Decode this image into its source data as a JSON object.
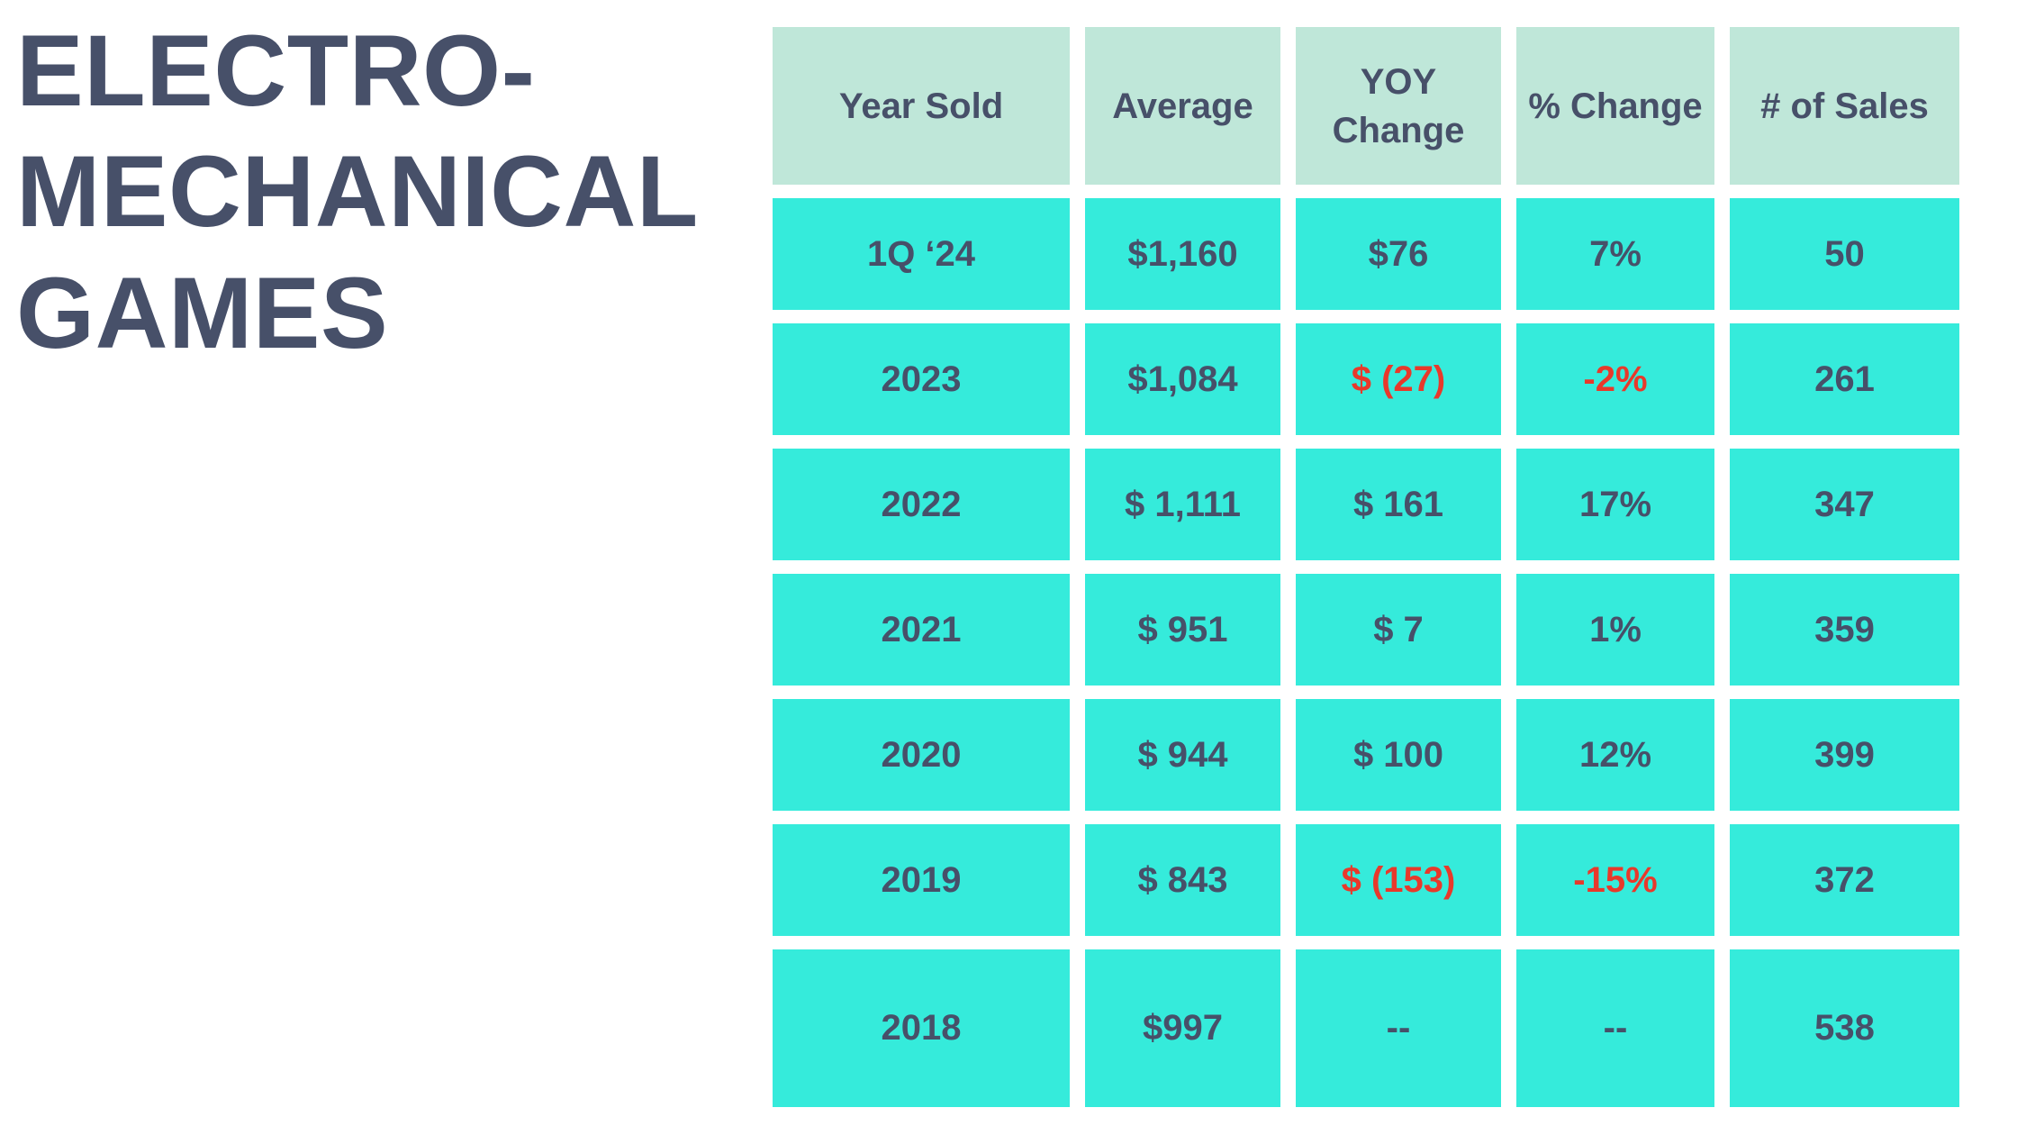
{
  "page": {
    "background_color": "#ffffff"
  },
  "title": {
    "text": "ELECTRO-MECHANICAL GAMES",
    "lines": [
      "ELECTRO-",
      "MECHANICAL",
      "GAMES"
    ],
    "color": "#475069"
  },
  "table": {
    "header_background": "#bfe7d9",
    "cell_background": "#35ebdb",
    "text_color": "#475069",
    "negative_color": "#e8392b",
    "columns": [
      "Year Sold",
      "Average",
      "YOY Change",
      "% Change",
      "# of Sales"
    ],
    "column_keys": [
      "year-sold",
      "average",
      "yoy-change",
      "pct-change",
      "num-sales"
    ],
    "rows": [
      {
        "cells": [
          {
            "t": "1Q ‘24"
          },
          {
            "t": "$1,160"
          },
          {
            "t": "$76"
          },
          {
            "t": "7%"
          },
          {
            "t": "50"
          }
        ]
      },
      {
        "cells": [
          {
            "t": "2023"
          },
          {
            "t": "$1,084"
          },
          {
            "t": "$ (27)",
            "red": true
          },
          {
            "t": "-2%",
            "red": true
          },
          {
            "t": "261"
          }
        ]
      },
      {
        "cells": [
          {
            "t": "2022"
          },
          {
            "t": "$ 1,111"
          },
          {
            "t": "$ 161"
          },
          {
            "t": "17%"
          },
          {
            "t": "347"
          }
        ]
      },
      {
        "cells": [
          {
            "t": "2021"
          },
          {
            "t": "$ 951"
          },
          {
            "t": "$ 7"
          },
          {
            "t": "1%"
          },
          {
            "t": "359"
          }
        ]
      },
      {
        "cells": [
          {
            "t": "2020"
          },
          {
            "t": "$ 944"
          },
          {
            "t": "$ 100"
          },
          {
            "t": "12%"
          },
          {
            "t": "399"
          }
        ]
      },
      {
        "cells": [
          {
            "t": "2019"
          },
          {
            "t": "$ 843"
          },
          {
            "t": "$ (153)",
            "red": true
          },
          {
            "t": "-15%",
            "red": true
          },
          {
            "t": "372"
          }
        ]
      },
      {
        "cells": [
          {
            "t": "2018"
          },
          {
            "t": "$997"
          },
          {
            "t": "--"
          },
          {
            "t": "--"
          },
          {
            "t": "538"
          }
        ]
      }
    ]
  },
  "chart_data": {
    "type": "table",
    "title": "ELECTRO-MECHANICAL GAMES",
    "columns": [
      "Year Sold",
      "Average",
      "YOY Change",
      "% Change",
      "# of Sales"
    ],
    "rows": [
      [
        "1Q ‘24",
        "$1,160",
        "$76",
        "7%",
        "50"
      ],
      [
        "2023",
        "$1,084",
        "$ (27)",
        "-2%",
        "261"
      ],
      [
        "2022",
        "$ 1,111",
        "$ 161",
        "17%",
        "347"
      ],
      [
        "2021",
        "$ 951",
        "$ 7",
        "1%",
        "359"
      ],
      [
        "2020",
        "$ 944",
        "$ 100",
        "12%",
        "399"
      ],
      [
        "2019",
        "$ 843",
        "$ (153)",
        "-15%",
        "372"
      ],
      [
        "2018",
        "$997",
        "--",
        "--",
        "538"
      ]
    ],
    "numeric": {
      "periods": [
        "1Q 2024",
        "2023",
        "2022",
        "2021",
        "2020",
        "2019",
        "2018"
      ],
      "average_usd": [
        1160,
        1084,
        1111,
        951,
        944,
        843,
        997
      ],
      "yoy_change_usd": [
        76,
        -27,
        161,
        7,
        100,
        -153,
        null
      ],
      "pct_change": [
        7,
        -2,
        17,
        1,
        12,
        -15,
        null
      ],
      "num_sales": [
        50,
        261,
        347,
        359,
        399,
        372,
        538
      ]
    },
    "layout": {
      "header_fill": "#bfe7d9",
      "body_fill": "#35ebdb",
      "text_color": "#475069",
      "negative_text_color": "#e8392b"
    }
  }
}
